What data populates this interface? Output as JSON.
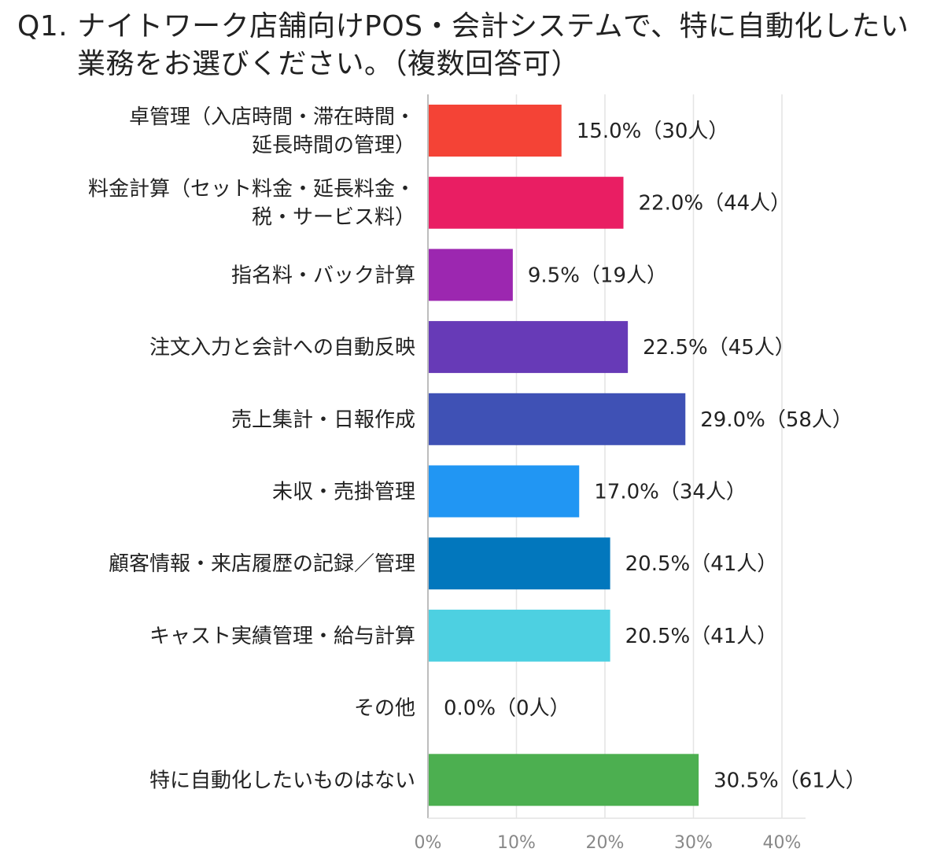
{
  "title_line1": "Q1. ナイトワーク店舗向けPOS・会計システムで、特に自動化したい",
  "title_line2": "業務をお選びください。（複数回答可）",
  "chart_data": {
    "type": "bar",
    "orientation": "horizontal",
    "categories": [
      [
        "卓管理（入店時間・滞在時間・",
        "延長時間の管理）"
      ],
      [
        "料金計算（セット料金・延長料金・",
        "税・サービス料）"
      ],
      [
        "指名料・バック計算"
      ],
      [
        "注文入力と会計への自動反映"
      ],
      [
        "売上集計・日報作成"
      ],
      [
        "未収・売掛管理"
      ],
      [
        "顧客情報・来店履歴の記録／管理"
      ],
      [
        "キャスト実績管理・給与計算"
      ],
      [
        "その他"
      ],
      [
        "特に自動化したいものはない"
      ]
    ],
    "values": [
      15.0,
      22.0,
      9.5,
      22.5,
      29.0,
      17.0,
      20.5,
      20.5,
      0.0,
      30.5
    ],
    "data_labels": [
      "15.0%（30人）",
      "22.0%（44人）",
      "9.5%（19人）",
      "22.5%（45人）",
      "29.0%（58人）",
      "17.0%（34人）",
      "20.5%（41人）",
      "20.5%（41人）",
      "0.0%（0人）",
      "30.5%（61人）"
    ],
    "colors": [
      "#f44336",
      "#e91e63",
      "#9c27b0",
      "#673ab7",
      "#3f51b5",
      "#2196f3",
      "#0277bd",
      "#4dd0e1",
      "#cccccc",
      "#4caf50"
    ],
    "xlim": [
      0,
      40
    ],
    "xticks": [
      0,
      10,
      20,
      30,
      40
    ],
    "xtick_labels": [
      "0%",
      "10%",
      "20%",
      "30%",
      "40%"
    ],
    "grid": true
  }
}
